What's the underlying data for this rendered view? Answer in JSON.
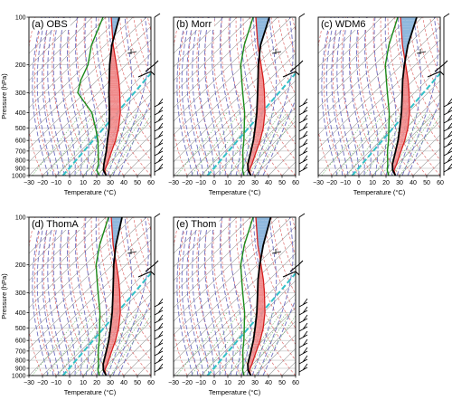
{
  "chart_data": [
    {
      "type": "line",
      "skew_t": true,
      "panel_label": "(a) OBS",
      "ylabel": "Pressure (hPa)",
      "xlabel": "Temperature (°C)",
      "xlim": [
        -30,
        60
      ],
      "ylim": [
        1000,
        100
      ],
      "yscale": "log",
      "x_ticks": [
        "−30",
        "−20",
        "−10",
        "0",
        "10",
        "20",
        "30",
        "40",
        "50",
        "60"
      ],
      "y_ticks": [
        "100",
        "200",
        "300",
        "400",
        "500",
        "600",
        "700",
        "800",
        "900",
        "1000"
      ],
      "temperature": {
        "p": [
          1000,
          925,
          850,
          700,
          600,
          500,
          400,
          300,
          250,
          200,
          150,
          100
        ],
        "t": [
          27,
          21,
          17,
          9,
          2,
          -6,
          -17,
          -32,
          -41,
          -52,
          -65,
          -80
        ]
      },
      "dewpoint": {
        "p": [
          1000,
          925,
          850,
          700,
          600,
          500,
          400,
          300,
          250,
          200,
          150,
          100
        ],
        "t": [
          22,
          16,
          13,
          3,
          -5,
          -16,
          -30,
          -55,
          -62,
          -68,
          -80,
          -92
        ]
      },
      "parcel": {
        "p": [
          1000,
          925,
          850,
          700,
          600,
          500,
          400,
          300,
          250,
          200,
          150,
          100
        ],
        "t": [
          27,
          22,
          19.5,
          13,
          8,
          1,
          -9,
          -24,
          -34,
          -47,
          -64,
          -86
        ]
      }
    },
    {
      "type": "line",
      "skew_t": true,
      "panel_label": "(b) Morr",
      "xlabel": "Temperature (°C)",
      "xlim": [
        -30,
        60
      ],
      "ylim": [
        1000,
        100
      ],
      "yscale": "log",
      "x_ticks": [
        "−30",
        "−20",
        "−10",
        "0",
        "10",
        "20",
        "30",
        "40",
        "50",
        "60"
      ],
      "temperature": {
        "p": [
          1000,
          925,
          850,
          700,
          600,
          500,
          400,
          300,
          250,
          200,
          150,
          100
        ],
        "t": [
          27,
          21,
          16.5,
          9,
          3,
          -5,
          -15,
          -29,
          -38,
          -49,
          -62,
          -76
        ]
      },
      "dewpoint": {
        "p": [
          1000,
          925,
          850,
          700,
          600,
          500,
          400,
          300,
          250,
          200,
          150,
          100
        ],
        "t": [
          22,
          17,
          13,
          3,
          -4,
          -13,
          -24,
          -40,
          -50,
          -62,
          -74,
          -88
        ]
      },
      "parcel": {
        "p": [
          1000,
          925,
          850,
          700,
          600,
          500,
          400,
          300,
          250,
          200,
          150,
          100
        ],
        "t": [
          27,
          22,
          19.5,
          13,
          8,
          1,
          -9,
          -24,
          -34,
          -47,
          -64,
          -86
        ]
      }
    },
    {
      "type": "line",
      "skew_t": true,
      "panel_label": "(c) WDM6",
      "xlabel": "Temperature (°C)",
      "xlim": [
        -30,
        60
      ],
      "ylim": [
        1000,
        100
      ],
      "yscale": "log",
      "x_ticks": [
        "−30",
        "−20",
        "−10",
        "0",
        "10",
        "20",
        "30",
        "40",
        "50",
        "60"
      ],
      "temperature": {
        "p": [
          1000,
          925,
          850,
          700,
          600,
          500,
          400,
          300,
          250,
          200,
          150,
          100
        ],
        "t": [
          27,
          21,
          16.5,
          9,
          3,
          -5,
          -15,
          -29,
          -38,
          -48,
          -60,
          -74
        ]
      },
      "dewpoint": {
        "p": [
          1000,
          925,
          850,
          700,
          600,
          500,
          400,
          300,
          250,
          200,
          150,
          100
        ],
        "t": [
          22,
          17,
          13,
          3,
          -4,
          -13,
          -24,
          -40,
          -50,
          -62,
          -74,
          -88
        ]
      },
      "parcel": {
        "p": [
          1000,
          925,
          850,
          700,
          600,
          500,
          400,
          300,
          250,
          200,
          150,
          100
        ],
        "t": [
          27,
          22,
          19.5,
          13,
          8,
          1,
          -9,
          -24,
          -34,
          -47,
          -64,
          -86
        ]
      }
    },
    {
      "type": "line",
      "skew_t": true,
      "panel_label": "(d) ThomA",
      "ylabel": "Pressure (hPa)",
      "xlabel": "Temperature (°C)",
      "xlim": [
        -30,
        60
      ],
      "ylim": [
        1000,
        100
      ],
      "yscale": "log",
      "x_ticks": [
        "−30",
        "−20",
        "−10",
        "0",
        "10",
        "20",
        "30",
        "40",
        "50",
        "60"
      ],
      "y_ticks": [
        "100",
        "200",
        "300",
        "400",
        "500",
        "600",
        "700",
        "800",
        "900",
        "1000"
      ],
      "temperature": {
        "p": [
          1000,
          925,
          850,
          700,
          600,
          500,
          400,
          300,
          250,
          200,
          150,
          100
        ],
        "t": [
          27,
          21,
          16.5,
          9,
          3,
          -5,
          -15,
          -29,
          -38,
          -49,
          -62,
          -78
        ]
      },
      "dewpoint": {
        "p": [
          1000,
          925,
          850,
          700,
          600,
          500,
          400,
          300,
          250,
          200,
          150,
          100
        ],
        "t": [
          22,
          17,
          13,
          3,
          -4,
          -13,
          -24,
          -40,
          -50,
          -62,
          -74,
          -88
        ]
      },
      "parcel": {
        "p": [
          1000,
          925,
          850,
          700,
          600,
          500,
          400,
          300,
          250,
          200,
          150,
          100
        ],
        "t": [
          27,
          22,
          19.5,
          13,
          8,
          1,
          -9,
          -24,
          -34,
          -47,
          -64,
          -86
        ]
      }
    },
    {
      "type": "line",
      "skew_t": true,
      "panel_label": "(e) Thom",
      "xlabel": "Temperature (°C)",
      "xlim": [
        -30,
        60
      ],
      "ylim": [
        1000,
        100
      ],
      "yscale": "log",
      "x_ticks": [
        "−30",
        "−20",
        "−10",
        "0",
        "10",
        "20",
        "30",
        "40",
        "50",
        "60"
      ],
      "temperature": {
        "p": [
          1000,
          925,
          850,
          700,
          600,
          500,
          400,
          300,
          250,
          200,
          150,
          100
        ],
        "t": [
          27,
          21,
          16.5,
          9,
          3,
          -5,
          -15,
          -29,
          -38,
          -48,
          -60,
          -75
        ]
      },
      "dewpoint": {
        "p": [
          1000,
          925,
          850,
          700,
          600,
          500,
          400,
          300,
          250,
          200,
          150,
          100
        ],
        "t": [
          22,
          17,
          13,
          3,
          -4,
          -13,
          -24,
          -40,
          -50,
          -62,
          -74,
          -88
        ]
      },
      "parcel": {
        "p": [
          1000,
          925,
          850,
          700,
          600,
          500,
          400,
          300,
          250,
          200,
          150,
          100
        ],
        "t": [
          27,
          22,
          19.5,
          13,
          8,
          1,
          -9,
          -24,
          -34,
          -47,
          -64,
          -86
        ]
      }
    }
  ],
  "colors": {
    "temperature": "#000000",
    "dewpoint": "#1a8a1a",
    "parcel": "#d62020",
    "cape": "#f08a8a",
    "cin": "#8fb8dd",
    "isotherm": "#9a9a9a",
    "dry_adiabat": "#e07070",
    "moist_adiabat": "#7070c0",
    "mixing_ratio": "#7fbf7f",
    "reference": "#33c0c8",
    "barb": "#000000"
  }
}
